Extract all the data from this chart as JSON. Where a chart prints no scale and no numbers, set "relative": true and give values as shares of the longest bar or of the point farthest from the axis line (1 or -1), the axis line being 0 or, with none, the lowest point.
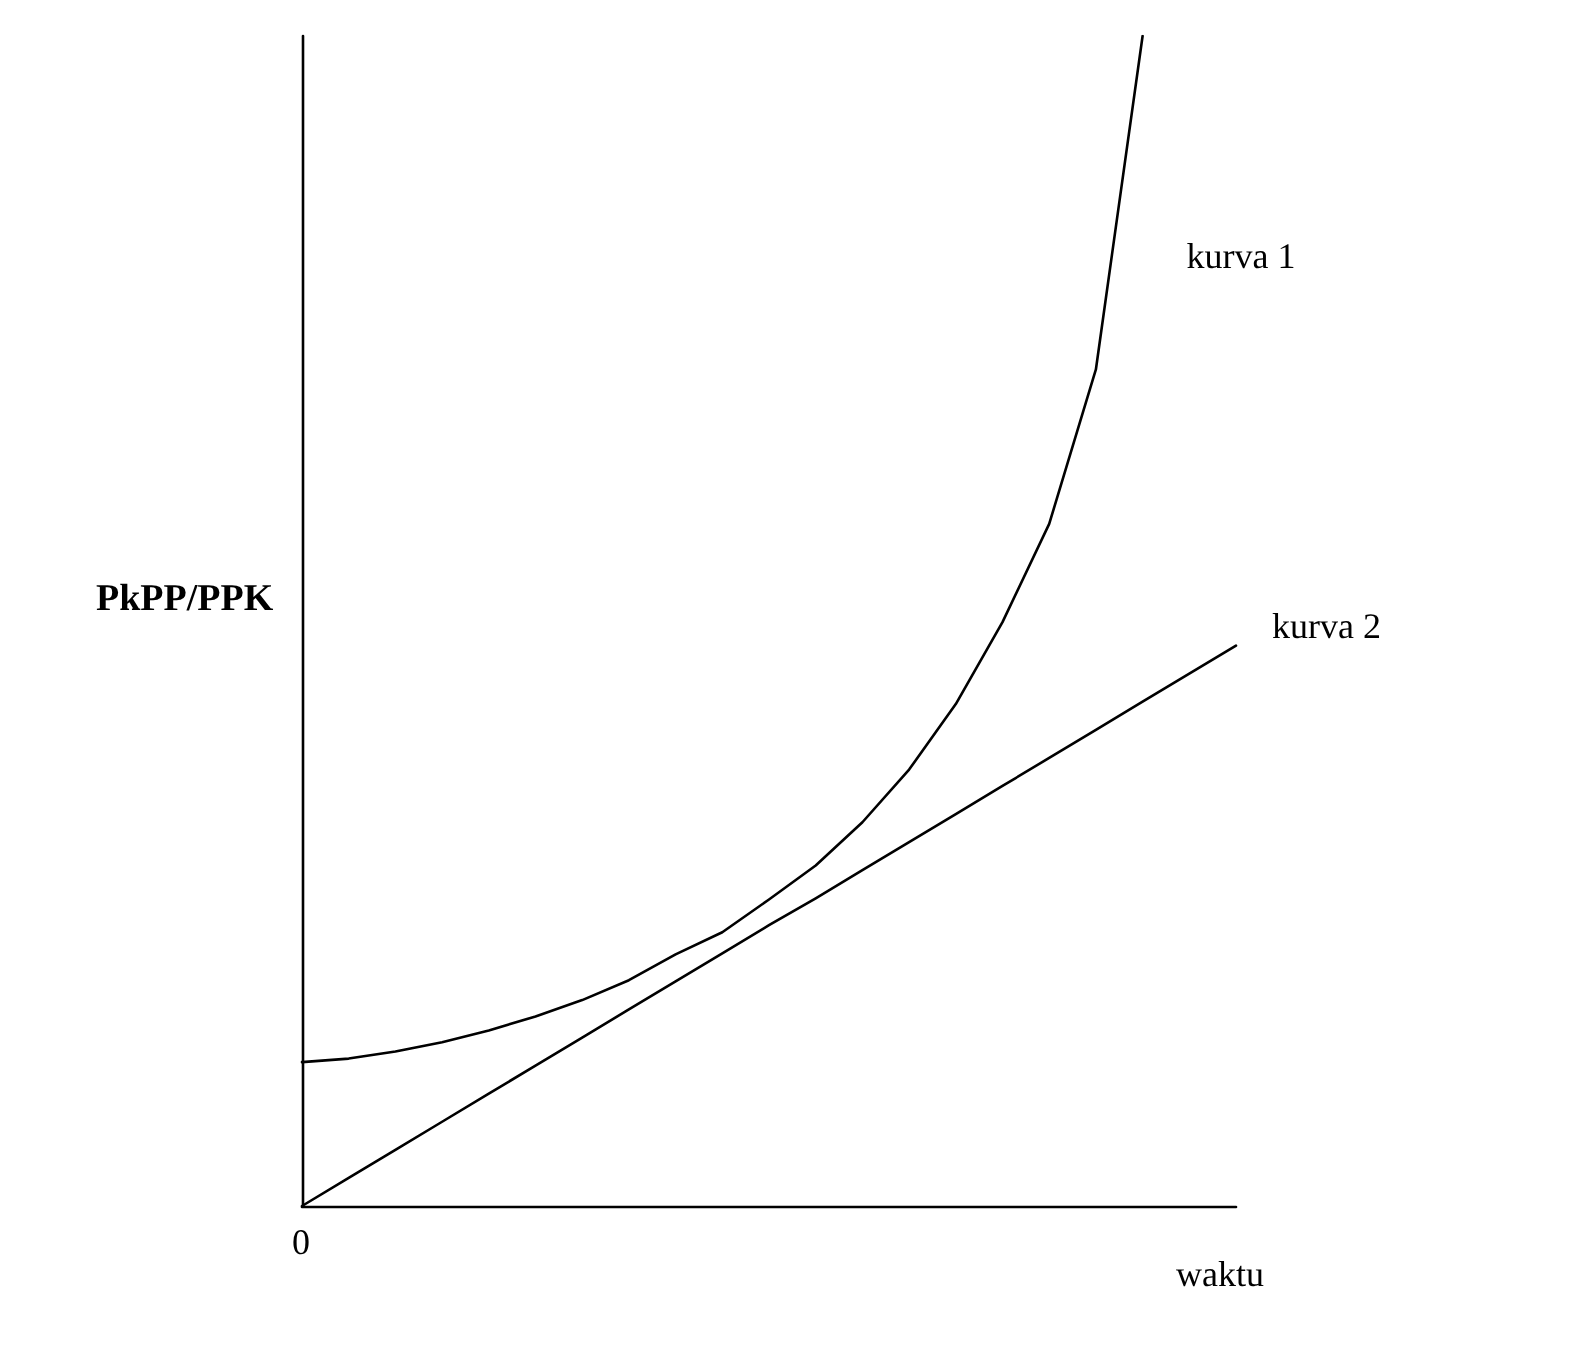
{
  "chart_data": {
    "type": "line",
    "relative": true,
    "xlabel": "waktu",
    "ylabel": "PkPP/PPK",
    "marker": "none",
    "line_style": "solid",
    "grid": false,
    "legend": false,
    "annotations": [
      "0"
    ],
    "categories": [
      null,
      null,
      null,
      null,
      null,
      null,
      null,
      null,
      null,
      null,
      null,
      null,
      null,
      null,
      null,
      null,
      null,
      null,
      null,
      null,
      null
    ],
    "series": [
      {
        "name": "kurva 1",
        "color": "#000000",
        "values": [
          0.123,
          0.126,
          0.132,
          0.14,
          0.15,
          0.162,
          0.176,
          0.193,
          0.215,
          0.234,
          0.262,
          0.291,
          0.328,
          0.373,
          0.429,
          0.499,
          0.583,
          0.715,
          1.0,
          null,
          null
        ]
      },
      {
        "name": "kurva 2",
        "color": "#000000",
        "values": [
          0,
          0.024,
          0.048,
          0.072,
          0.096,
          0.12,
          0.144,
          0.168,
          0.192,
          0.216,
          0.24,
          0.263,
          0.287,
          0.311,
          0.335,
          0.359,
          0.383,
          0.407,
          0.431,
          0.455,
          0.479
        ]
      }
    ]
  }
}
